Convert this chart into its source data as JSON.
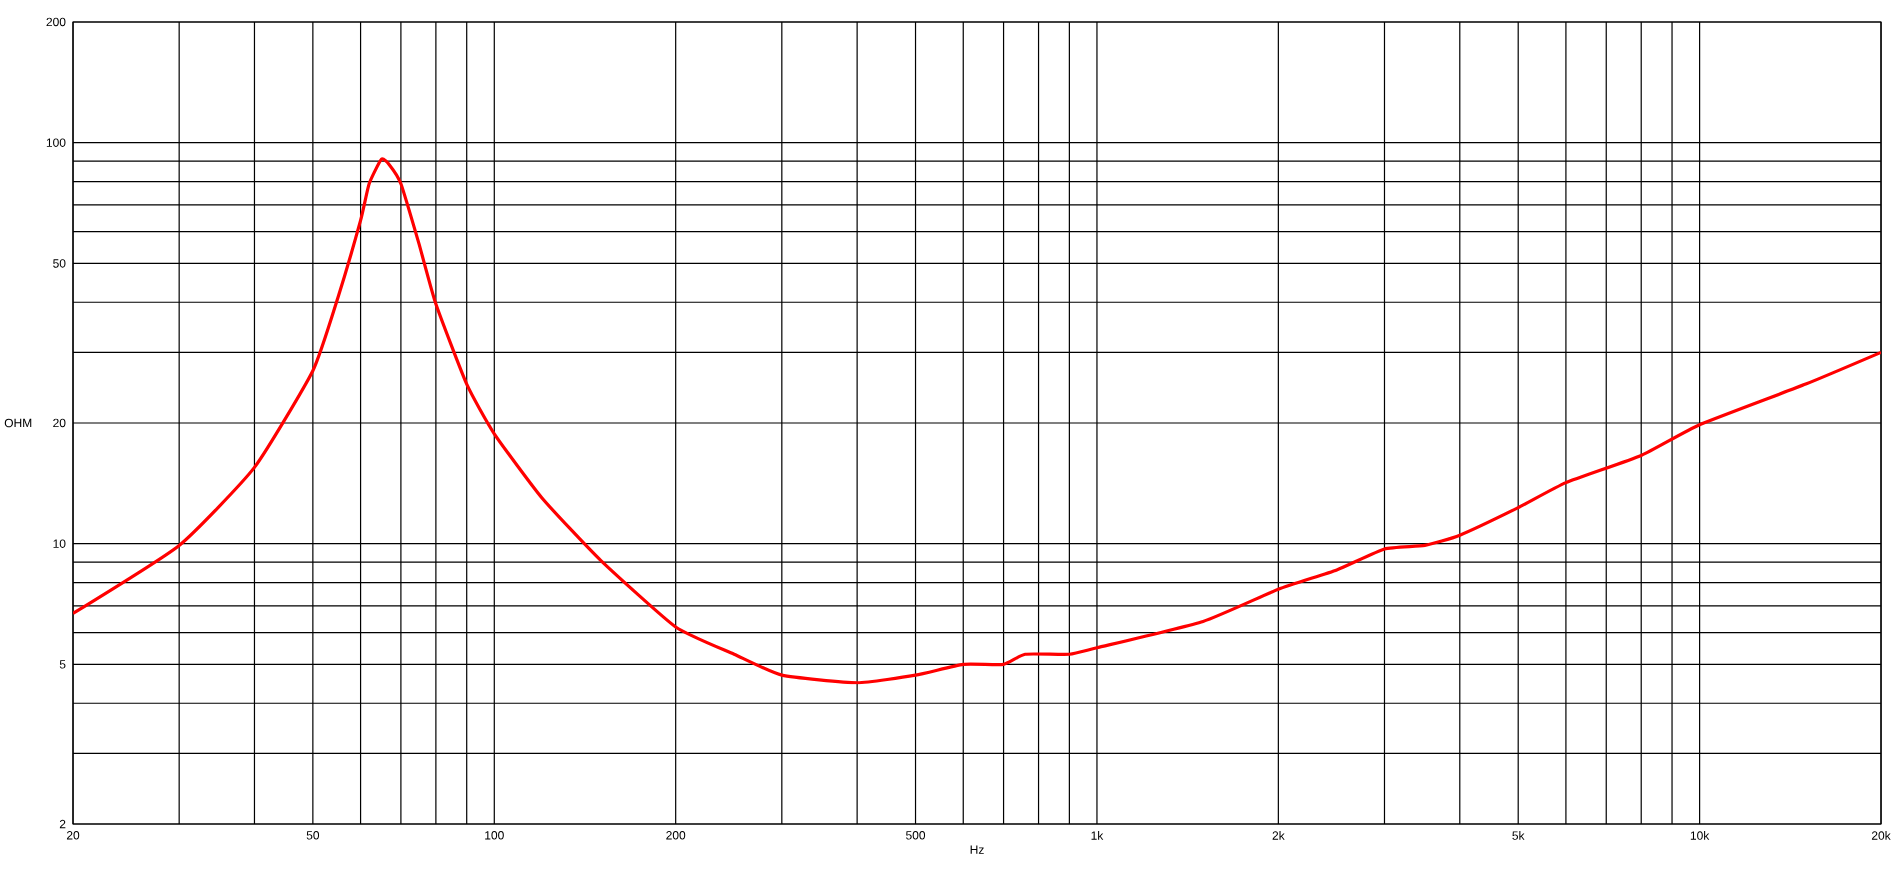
{
  "chart_data": {
    "type": "line",
    "xlabel": "Hz",
    "ylabel": "OHM",
    "log": "xy",
    "grid": true,
    "marker": "none",
    "line_style": "solid",
    "x": [
      20,
      30,
      40,
      50,
      55,
      60,
      62,
      65,
      67,
      70,
      75,
      80,
      90,
      100,
      120,
      150,
      200,
      250,
      300,
      400,
      500,
      600,
      700,
      760,
      900,
      1000,
      1500,
      2000,
      2500,
      3000,
      3500,
      4000,
      5000,
      6000,
      8000,
      10000,
      15000,
      20000
    ],
    "series": [
      {
        "color": "#ff0000",
        "values": [
          6.7,
          9.9,
          15.5,
          27,
          41,
          64,
          79,
          91,
          88,
          79,
          56,
          39.6,
          25,
          18.8,
          13,
          9.1,
          6.2,
          5.3,
          4.7,
          4.5,
          4.7,
          5.0,
          5.0,
          5.3,
          5.3,
          5.5,
          6.4,
          7.7,
          8.6,
          9.7,
          9.9,
          10.5,
          12.3,
          14.2,
          16.6,
          19.8,
          25,
          30
        ]
      }
    ],
    "xlim": [
      20,
      20000
    ],
    "ylim": [
      2,
      200
    ],
    "xticks": [
      20,
      {
        "value": 30,
        "label": null
      },
      {
        "value": 40,
        "label": null
      },
      50,
      {
        "value": 60,
        "label": null
      },
      {
        "value": 70,
        "label": null
      },
      {
        "value": 80,
        "label": null
      },
      {
        "value": 90,
        "label": null
      },
      100,
      200,
      {
        "value": 300,
        "label": null
      },
      {
        "value": 400,
        "label": null
      },
      500,
      {
        "value": 600,
        "label": null
      },
      {
        "value": 700,
        "label": null
      },
      {
        "value": 800,
        "label": null
      },
      {
        "value": 900,
        "label": null
      },
      {
        "value": 1000,
        "label": "1k"
      },
      {
        "value": 2000,
        "label": "2k"
      },
      {
        "value": 3000,
        "label": null
      },
      {
        "value": 4000,
        "label": null
      },
      {
        "value": 5000,
        "label": "5k"
      },
      {
        "value": 6000,
        "label": null
      },
      {
        "value": 7000,
        "label": null
      },
      {
        "value": 8000,
        "label": null
      },
      {
        "value": 9000,
        "label": null
      },
      {
        "value": 10000,
        "label": "10k"
      },
      {
        "value": 20000,
        "label": "20k"
      }
    ],
    "yticks": [
      2,
      {
        "value": 3,
        "label": null
      },
      {
        "value": 4,
        "label": null
      },
      5,
      {
        "value": 6,
        "label": null
      },
      {
        "value": 7,
        "label": null
      },
      {
        "value": 8,
        "label": null
      },
      {
        "value": 9,
        "label": null
      },
      10,
      20,
      {
        "value": 30,
        "label": null
      },
      {
        "value": 40,
        "label": null
      },
      50,
      {
        "value": 60,
        "label": null
      },
      {
        "value": 70,
        "label": null
      },
      {
        "value": 80,
        "label": null
      },
      {
        "value": 90,
        "label": null
      },
      100,
      200
    ]
  }
}
